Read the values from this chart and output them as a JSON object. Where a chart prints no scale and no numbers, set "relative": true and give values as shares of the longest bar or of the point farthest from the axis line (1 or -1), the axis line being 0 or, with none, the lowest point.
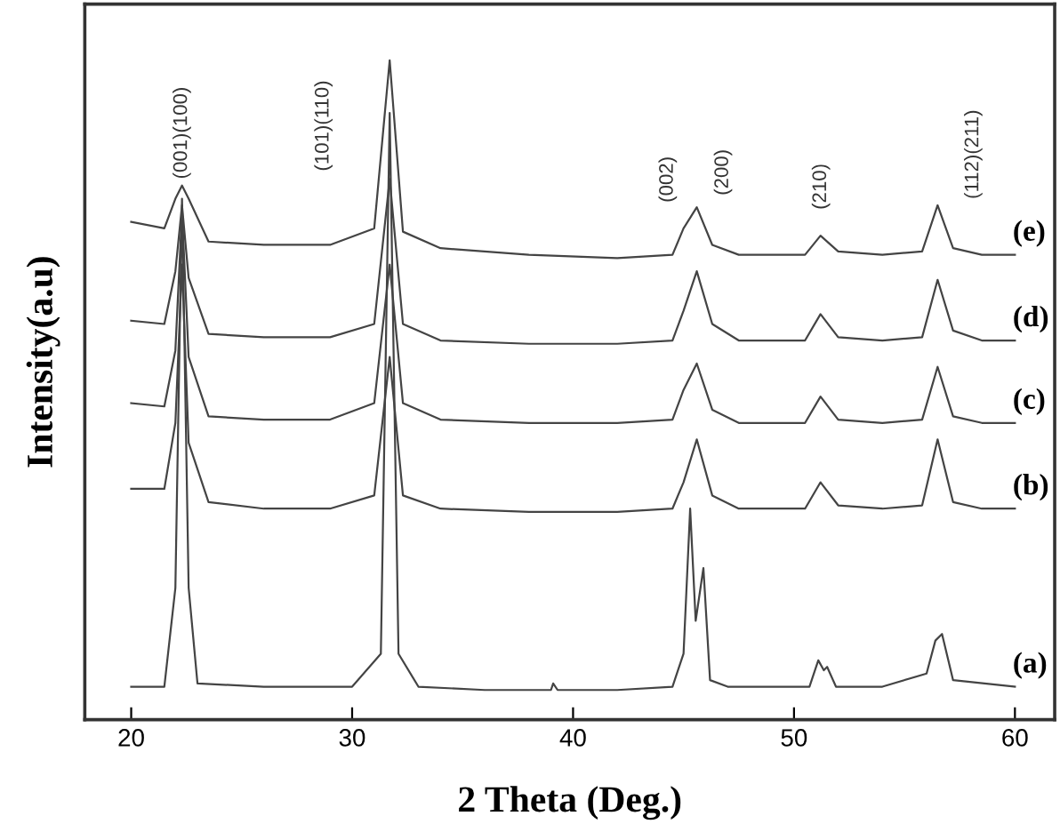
{
  "chart_data": {
    "type": "line",
    "relative": true,
    "xlabel": "2 Theta (Deg.)",
    "ylabel": "Intensity(a.u)",
    "xlim": [
      17.9,
      61.8
    ],
    "xticks": [
      20,
      30,
      40,
      50,
      60
    ],
    "tick_labels": "x",
    "grid": false,
    "legend": false,
    "marker": "none",
    "line_style": "solid",
    "series": [
      {
        "name": "(a)",
        "color": "#444444",
        "x": [
          20,
          21.5,
          22.0,
          22.3,
          22.6,
          23,
          26,
          30,
          31.3,
          31.7,
          32.1,
          33,
          36,
          39,
          39.1,
          39.3,
          42,
          44.5,
          45.0,
          45.3,
          45.55,
          45.9,
          46.2,
          47,
          50.7,
          51.1,
          51.35,
          51.5,
          51.9,
          54,
          56.0,
          56.4,
          56.7,
          57.2,
          60
        ],
        "values": [
          0.05,
          0.05,
          0.2,
          0.79,
          0.2,
          0.055,
          0.05,
          0.05,
          0.1,
          0.92,
          0.1,
          0.05,
          0.045,
          0.045,
          0.055,
          0.045,
          0.045,
          0.05,
          0.1,
          0.32,
          0.15,
          0.23,
          0.06,
          0.05,
          0.05,
          0.09,
          0.075,
          0.08,
          0.05,
          0.05,
          0.07,
          0.12,
          0.13,
          0.06,
          0.05
        ]
      },
      {
        "name": "(b)",
        "color": "#444444",
        "x": [
          20,
          21.5,
          22.0,
          22.3,
          22.6,
          23.5,
          26,
          29,
          31.0,
          31.7,
          32.3,
          34,
          38,
          42,
          44.5,
          45.0,
          45.6,
          46.3,
          47.5,
          50.5,
          51.2,
          52.0,
          54,
          55.8,
          56.5,
          57.2,
          58.5,
          60
        ],
        "values": [
          0.35,
          0.35,
          0.45,
          0.69,
          0.42,
          0.33,
          0.32,
          0.32,
          0.34,
          0.55,
          0.34,
          0.32,
          0.315,
          0.315,
          0.32,
          0.36,
          0.425,
          0.34,
          0.32,
          0.32,
          0.36,
          0.325,
          0.32,
          0.325,
          0.425,
          0.33,
          0.32,
          0.32
        ]
      },
      {
        "name": "(c)",
        "color": "#444444",
        "x": [
          20,
          21.5,
          22.0,
          22.3,
          22.6,
          23.5,
          26,
          29,
          31.0,
          31.7,
          32.3,
          34,
          38,
          42,
          44.5,
          45.0,
          45.6,
          46.3,
          47.5,
          50.5,
          51.2,
          52.0,
          54,
          55.8,
          56.5,
          57.2,
          58.5,
          60
        ],
        "values": [
          0.48,
          0.475,
          0.56,
          0.77,
          0.55,
          0.46,
          0.455,
          0.455,
          0.48,
          0.69,
          0.48,
          0.455,
          0.45,
          0.45,
          0.455,
          0.5,
          0.54,
          0.47,
          0.45,
          0.45,
          0.49,
          0.455,
          0.45,
          0.455,
          0.535,
          0.46,
          0.45,
          0.45
        ]
      },
      {
        "name": "(d)",
        "color": "#444444",
        "x": [
          20,
          21.5,
          22.0,
          22.3,
          22.6,
          23.5,
          26,
          29,
          31.0,
          31.7,
          32.3,
          34,
          38,
          42,
          44.5,
          45.0,
          45.6,
          46.3,
          47.5,
          50.5,
          51.2,
          52.0,
          54,
          55.8,
          56.5,
          57.2,
          58.5,
          60
        ],
        "values": [
          0.605,
          0.6,
          0.68,
          0.78,
          0.67,
          0.585,
          0.58,
          0.58,
          0.6,
          0.82,
          0.6,
          0.575,
          0.57,
          0.57,
          0.575,
          0.62,
          0.68,
          0.6,
          0.575,
          0.575,
          0.615,
          0.58,
          0.575,
          0.58,
          0.667,
          0.59,
          0.575,
          0.575
        ]
      },
      {
        "name": "(e)",
        "color": "#444444",
        "x": [
          20,
          21.5,
          22.0,
          22.3,
          22.6,
          23.5,
          26,
          29,
          31.0,
          31.7,
          32.3,
          34,
          38,
          42,
          44.5,
          45.0,
          45.6,
          46.3,
          47.5,
          50.5,
          51.2,
          52.0,
          54,
          55.8,
          56.5,
          57.2,
          58.5,
          60
        ],
        "values": [
          0.755,
          0.745,
          0.79,
          0.81,
          0.79,
          0.725,
          0.72,
          0.72,
          0.745,
          1.0,
          0.74,
          0.715,
          0.705,
          0.7,
          0.705,
          0.745,
          0.777,
          0.72,
          0.705,
          0.705,
          0.734,
          0.71,
          0.705,
          0.71,
          0.78,
          0.715,
          0.705,
          0.705
        ]
      }
    ],
    "annotations": [
      "(001)(100)",
      "(101)(110)",
      "(002)",
      "(200)",
      "(210)",
      "(112)(211)"
    ]
  }
}
